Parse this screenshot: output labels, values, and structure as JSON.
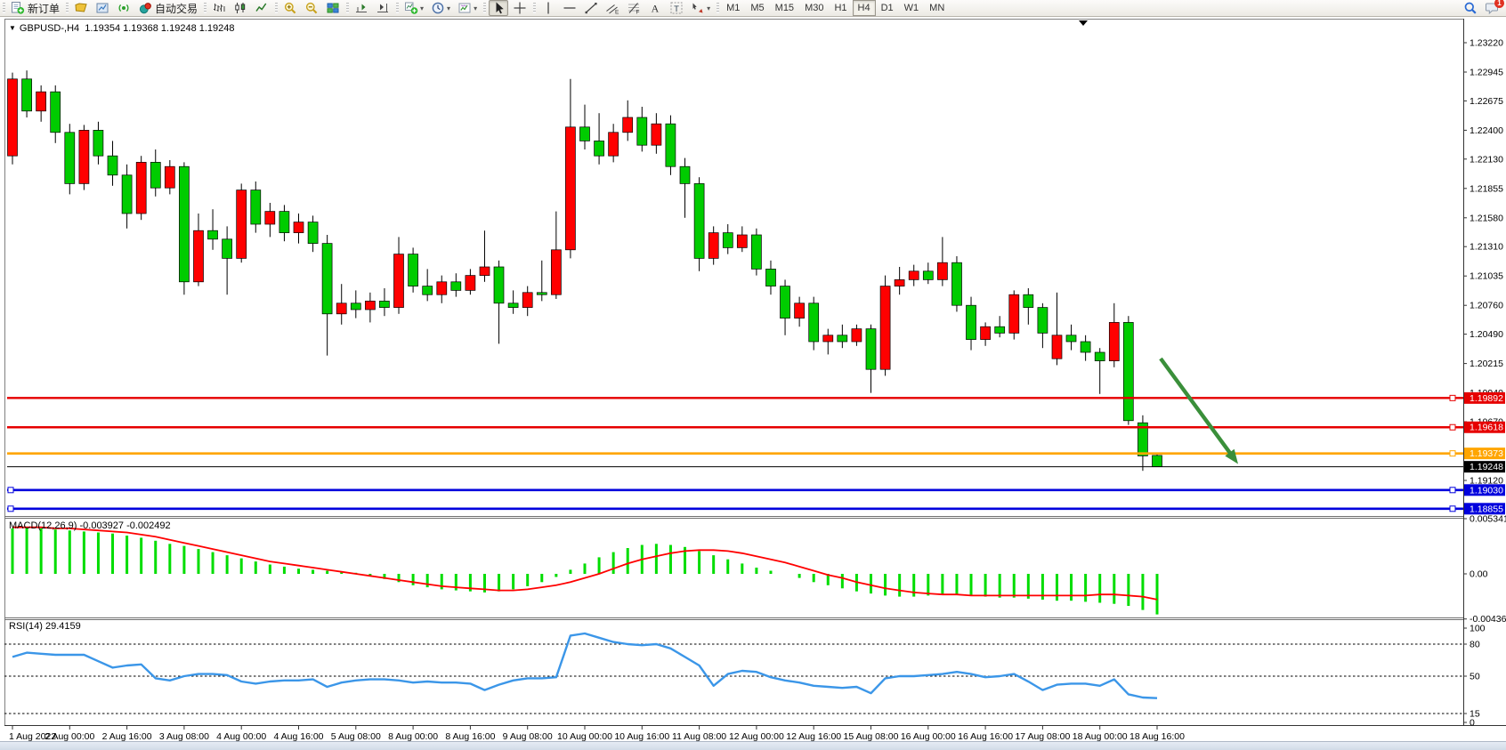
{
  "toolbar": {
    "groups": [
      {
        "items": [
          {
            "name": "new-order-button",
            "glyph": "new-order",
            "label": "新订单"
          }
        ]
      },
      {
        "items": [
          {
            "name": "chart-profile-button",
            "glyph": "profile"
          },
          {
            "name": "market-watch-button",
            "glyph": "market"
          },
          {
            "name": "signals-button",
            "glyph": "signal"
          },
          {
            "name": "auto-trading-button",
            "glyph": "autotrade",
            "label": "自动交易"
          }
        ]
      },
      {
        "items": [
          {
            "name": "bar-chart-button",
            "glyph": "bars"
          },
          {
            "name": "candlestick-chart-button",
            "glyph": "candles"
          },
          {
            "name": "line-chart-button",
            "glyph": "linechart"
          }
        ]
      },
      {
        "items": [
          {
            "name": "zoom-in-button",
            "glyph": "zoomin"
          },
          {
            "name": "zoom-out-button",
            "glyph": "zoomout"
          },
          {
            "name": "tile-windows-button",
            "glyph": "tiles"
          }
        ]
      },
      {
        "items": [
          {
            "name": "chart-shift-button",
            "glyph": "shift"
          },
          {
            "name": "auto-scroll-button",
            "glyph": "autoscroll"
          }
        ]
      },
      {
        "items": [
          {
            "name": "indicators-button",
            "glyph": "indicators",
            "caret": true
          },
          {
            "name": "periods-button",
            "glyph": "clock",
            "caret": true
          },
          {
            "name": "templates-button",
            "glyph": "template",
            "caret": true
          }
        ]
      },
      {
        "items": [
          {
            "name": "cursor-button",
            "glyph": "cursor",
            "active": true
          },
          {
            "name": "crosshair-button",
            "glyph": "crosshair"
          }
        ]
      },
      {
        "items": [
          {
            "name": "vertical-line-button",
            "glyph": "vline"
          },
          {
            "name": "horizontal-line-button",
            "glyph": "hline"
          },
          {
            "name": "trendline-button",
            "glyph": "trendline"
          },
          {
            "name": "equidistant-channel-button",
            "glyph": "channel"
          },
          {
            "name": "fibonacci-button",
            "glyph": "fibo"
          },
          {
            "name": "text-button",
            "glyph": "textA"
          },
          {
            "name": "text-label-button",
            "glyph": "labelT"
          },
          {
            "name": "arrows-button",
            "glyph": "arrows",
            "caret": true
          }
        ]
      }
    ],
    "timeframes": [
      {
        "label": "M1"
      },
      {
        "label": "M5"
      },
      {
        "label": "M15"
      },
      {
        "label": "M30"
      },
      {
        "label": "H1"
      },
      {
        "label": "H4",
        "active": true
      },
      {
        "label": "D1"
      },
      {
        "label": "W1"
      },
      {
        "label": "MN"
      }
    ],
    "right": [
      {
        "name": "search-button",
        "glyph": "magnifier"
      },
      {
        "name": "notifications-button",
        "glyph": "bubble",
        "badge": "1"
      }
    ]
  },
  "chart": {
    "title": {
      "symbol": "GBPUSD-,H4",
      "ohlc": "1.19354 1.19368 1.19248 1.19248"
    },
    "macd_label": {
      "name": "MACD(12,26,9)",
      "main_value": "-0.003927",
      "signal_value": "-0.002492"
    },
    "rsi_label": {
      "name": "RSI(14)",
      "value": "29.4159"
    },
    "colors": {
      "up": "#ff0000",
      "down": "#00cc00",
      "wick": "#000000",
      "macd_hist": "#00dd00",
      "macd_signal": "#ff0000",
      "rsi_line": "#3b96e8",
      "arrow": "#3a8f3a",
      "red_line": "#e60000",
      "orange_line": "#ffa500",
      "blue_line": "#0000dd",
      "bid_line": "#000000"
    }
  },
  "chart_data": [
    {
      "type": "candlestick",
      "title": "GBPUSD-,H4",
      "timeframe": "H4",
      "ylim": [
        1.1878,
        1.2344
      ],
      "price_ticks": [
        1.2322,
        1.22945,
        1.22675,
        1.224,
        1.2213,
        1.21855,
        1.2158,
        1.2131,
        1.21035,
        1.2076,
        1.2049,
        1.20215,
        1.1994,
        1.1967,
        1.1912
      ],
      "x_labels": [
        "1 Aug 2022",
        "2 Aug 00:00",
        "2 Aug 16:00",
        "3 Aug 08:00",
        "4 Aug 00:00",
        "4 Aug 16:00",
        "5 Aug 08:00",
        "8 Aug 00:00",
        "8 Aug 16:00",
        "9 Aug 08:00",
        "10 Aug 00:00",
        "10 Aug 16:00",
        "11 Aug 08:00",
        "12 Aug 00:00",
        "12 Aug 16:00",
        "15 Aug 08:00",
        "16 Aug 00:00",
        "16 Aug 16:00",
        "17 Aug 08:00",
        "18 Aug 00:00",
        "18 Aug 16:00"
      ],
      "x_label_every_n_bars": 4,
      "hlines": [
        {
          "price": 1.19892,
          "label": "1.19892",
          "role": "resistance",
          "color_key": "red_line",
          "width": 2.4,
          "handles": "right"
        },
        {
          "price": 1.19618,
          "label": "1.19618",
          "role": "resistance",
          "color_key": "red_line",
          "width": 2.4,
          "handles": "right"
        },
        {
          "price": 1.19373,
          "label": "1.19373",
          "role": "pivot",
          "color_key": "orange_line",
          "width": 2.6,
          "handles": "right"
        },
        {
          "price": 1.19248,
          "label": "1.19248",
          "role": "bid",
          "color_key": "bid_line",
          "width": 1,
          "handles": "none"
        },
        {
          "price": 1.1903,
          "label": "1.19030",
          "role": "support",
          "color_key": "blue_line",
          "width": 2.6,
          "handles": "both"
        },
        {
          "price": 1.18855,
          "label": "1.18855",
          "role": "support",
          "color_key": "blue_line",
          "width": 2.6,
          "handles": "both"
        }
      ],
      "annotation_arrow": {
        "from_bar": 80,
        "direction": "down-right",
        "color": "#3a8f3a"
      },
      "candles": {
        "o": [
          1.2216,
          1.2288,
          1.2258,
          1.2276,
          1.2238,
          1.219,
          1.224,
          1.2216,
          1.2198,
          1.2162,
          1.221,
          1.2186,
          1.2206,
          1.2098,
          1.2146,
          1.2138,
          1.212,
          1.2184,
          1.2152,
          1.2164,
          1.2144,
          1.2154,
          1.2134,
          1.2068,
          1.2078,
          1.2072,
          1.208,
          1.2074,
          1.2124,
          1.2094,
          1.2086,
          1.2098,
          1.209,
          1.2104,
          1.2112,
          1.2078,
          1.2074,
          1.2088,
          1.2086,
          1.2128,
          1.2243,
          1.223,
          1.2216,
          1.2238,
          1.2252,
          1.2226,
          1.2246,
          1.2206,
          1.219,
          1.212,
          1.2144,
          1.213,
          1.2142,
          1.211,
          1.2094,
          1.2064,
          1.2078,
          1.2042,
          1.2048,
          1.2042,
          1.2054,
          1.2016,
          1.2094,
          1.21,
          1.2108,
          1.21,
          1.2116,
          1.2076,
          1.2044,
          1.2056,
          1.205,
          1.2086,
          1.2074,
          1.2026,
          1.2048,
          1.2042,
          1.2032,
          1.2024,
          1.206,
          1.1966,
          1.19354
        ],
        "h": [
          1.2294,
          1.2296,
          1.2282,
          1.2282,
          1.2246,
          1.2245,
          1.2248,
          1.223,
          1.2208,
          1.2216,
          1.2222,
          1.2212,
          1.221,
          1.2162,
          1.2166,
          1.215,
          1.219,
          1.2192,
          1.2172,
          1.217,
          1.2162,
          1.216,
          1.2142,
          1.2096,
          1.209,
          1.2088,
          1.2092,
          1.214,
          1.213,
          1.211,
          1.2104,
          1.2106,
          1.211,
          1.2146,
          1.2118,
          1.209,
          1.2094,
          1.2118,
          1.2164,
          1.2288,
          1.2264,
          1.2256,
          1.2246,
          1.2268,
          1.2262,
          1.2256,
          1.2254,
          1.2214,
          1.2196,
          1.215,
          1.2152,
          1.215,
          1.2148,
          1.2118,
          1.21,
          1.2084,
          1.2084,
          1.2054,
          1.2058,
          1.2058,
          1.2058,
          1.2104,
          1.2112,
          1.2114,
          1.2116,
          1.214,
          1.2122,
          1.2084,
          1.206,
          1.2066,
          1.209,
          1.2092,
          1.2078,
          1.2088,
          1.2058,
          1.2048,
          1.2036,
          1.2078,
          1.2066,
          1.1973,
          1.19368
        ],
        "l": [
          1.2208,
          1.2252,
          1.2248,
          1.2228,
          1.218,
          1.2184,
          1.2208,
          1.2188,
          1.2148,
          1.2156,
          1.2178,
          1.218,
          1.2086,
          1.2094,
          1.2128,
          1.2086,
          1.2116,
          1.2144,
          1.214,
          1.2136,
          1.2134,
          1.2126,
          1.2029,
          1.2058,
          1.2064,
          1.206,
          1.2066,
          1.2068,
          1.2088,
          1.208,
          1.2078,
          1.2084,
          1.2086,
          1.2098,
          1.204,
          1.2068,
          1.2066,
          1.208,
          1.2082,
          1.212,
          1.2222,
          1.2208,
          1.221,
          1.223,
          1.222,
          1.2218,
          1.2198,
          1.2158,
          1.2108,
          1.2114,
          1.2124,
          1.2126,
          1.2104,
          1.2086,
          1.2048,
          1.2056,
          1.2034,
          1.203,
          1.2036,
          1.2038,
          1.1994,
          1.201,
          1.2086,
          1.2094,
          1.2096,
          1.2094,
          1.207,
          1.2034,
          1.2038,
          1.2046,
          1.2044,
          1.2058,
          1.2036,
          1.202,
          1.2034,
          1.2024,
          1.1993,
          1.2018,
          1.1964,
          1.1921,
          1.19248
        ],
        "c": [
          1.2288,
          1.2258,
          1.2276,
          1.2238,
          1.219,
          1.224,
          1.2216,
          1.2198,
          1.2162,
          1.221,
          1.2186,
          1.2206,
          1.2098,
          1.2146,
          1.2138,
          1.212,
          1.2184,
          1.2152,
          1.2164,
          1.2144,
          1.2154,
          1.2134,
          1.2068,
          1.2078,
          1.2072,
          1.208,
          1.2074,
          1.2124,
          1.2094,
          1.2086,
          1.2098,
          1.209,
          1.2104,
          1.2112,
          1.2078,
          1.2074,
          1.2088,
          1.2086,
          1.2128,
          1.2243,
          1.223,
          1.2216,
          1.2238,
          1.2252,
          1.2226,
          1.2246,
          1.2206,
          1.219,
          1.212,
          1.2144,
          1.213,
          1.2142,
          1.211,
          1.2094,
          1.2064,
          1.2078,
          1.2042,
          1.2048,
          1.2042,
          1.2054,
          1.2016,
          1.2094,
          1.21,
          1.2108,
          1.21,
          1.2116,
          1.2076,
          1.2044,
          1.2056,
          1.205,
          1.2086,
          1.2074,
          1.205,
          1.2048,
          1.2042,
          1.2032,
          1.2024,
          1.206,
          1.1968,
          1.1935,
          1.19248
        ]
      }
    },
    {
      "type": "bar",
      "name": "MACD(12,26,9)",
      "current_values": [
        -0.003927,
        -0.002492
      ],
      "axis_ticks": [
        0.005341,
        0.0,
        -0.004368
      ],
      "histogram": [
        0.0044,
        0.0045,
        0.0044,
        0.0043,
        0.0042,
        0.0041,
        0.004,
        0.0039,
        0.0037,
        0.0035,
        0.0032,
        0.0029,
        0.0027,
        0.0024,
        0.0021,
        0.0018,
        0.0015,
        0.0012,
        0.0009,
        0.0007,
        0.0005,
        0.0004,
        0.0003,
        0.0002,
        0.0001,
        -0.0002,
        -0.0005,
        -0.0008,
        -0.0011,
        -0.0013,
        -0.0015,
        -0.0016,
        -0.0017,
        -0.0018,
        -0.0017,
        -0.0015,
        -0.0012,
        -0.0008,
        -0.0003,
        0.0004,
        0.001,
        0.0016,
        0.0021,
        0.0025,
        0.0028,
        0.0029,
        0.0028,
        0.0026,
        0.0022,
        0.0018,
        0.0014,
        0.001,
        0.0006,
        0.0003,
        0.0,
        -0.0004,
        -0.0008,
        -0.0011,
        -0.0014,
        -0.0017,
        -0.0019,
        -0.0021,
        -0.0022,
        -0.0022,
        -0.0021,
        -0.002,
        -0.002,
        -0.0021,
        -0.0022,
        -0.0023,
        -0.0023,
        -0.0024,
        -0.0025,
        -0.0026,
        -0.0026,
        -0.0027,
        -0.0028,
        -0.0029,
        -0.0031,
        -0.0035,
        -0.003927
      ],
      "signal": [
        0.0045,
        0.0045,
        0.0045,
        0.0044,
        0.0044,
        0.0043,
        0.0042,
        0.0041,
        0.004,
        0.0038,
        0.0036,
        0.0033,
        0.003,
        0.0027,
        0.0024,
        0.0021,
        0.0018,
        0.0015,
        0.0012,
        0.001,
        0.0008,
        0.0006,
        0.0004,
        0.0002,
        0.0,
        -0.0002,
        -0.0004,
        -0.0006,
        -0.0008,
        -0.001,
        -0.0012,
        -0.0013,
        -0.0014,
        -0.0015,
        -0.0016,
        -0.0016,
        -0.0015,
        -0.0013,
        -0.0011,
        -0.0008,
        -0.0004,
        0.0,
        0.0005,
        0.001,
        0.0014,
        0.0017,
        0.002,
        0.0022,
        0.0023,
        0.0023,
        0.0022,
        0.002,
        0.0017,
        0.0014,
        0.0011,
        0.0007,
        0.0003,
        -0.0001,
        -0.0004,
        -0.0008,
        -0.0011,
        -0.0014,
        -0.0016,
        -0.0018,
        -0.0019,
        -0.002,
        -0.002,
        -0.0021,
        -0.0021,
        -0.0021,
        -0.0021,
        -0.0021,
        -0.0021,
        -0.0021,
        -0.0021,
        -0.0021,
        -0.002,
        -0.002,
        -0.0021,
        -0.0022,
        -0.002492
      ]
    },
    {
      "type": "line",
      "name": "RSI(14)",
      "current_value": 29.4159,
      "axis_ticks": [
        100,
        80,
        50,
        15,
        0
      ],
      "dashed_levels": [
        80,
        50,
        15
      ],
      "values": [
        68,
        72,
        71,
        70,
        70,
        70,
        64,
        58,
        60,
        61,
        48,
        46,
        50,
        52,
        52,
        51,
        45,
        43,
        45,
        46,
        46,
        47,
        40,
        44,
        46,
        47,
        47,
        46,
        44,
        45,
        44,
        44,
        43,
        37,
        42,
        46,
        48,
        48,
        49,
        88,
        90,
        86,
        82,
        80,
        79,
        80,
        76,
        68,
        60,
        41,
        52,
        55,
        54,
        49,
        46,
        44,
        41,
        40,
        39,
        40,
        34,
        48,
        50,
        50,
        51,
        52,
        54,
        52,
        49,
        50,
        52,
        45,
        37,
        42,
        43,
        43,
        41,
        47,
        33,
        30,
        29.4159
      ]
    }
  ]
}
